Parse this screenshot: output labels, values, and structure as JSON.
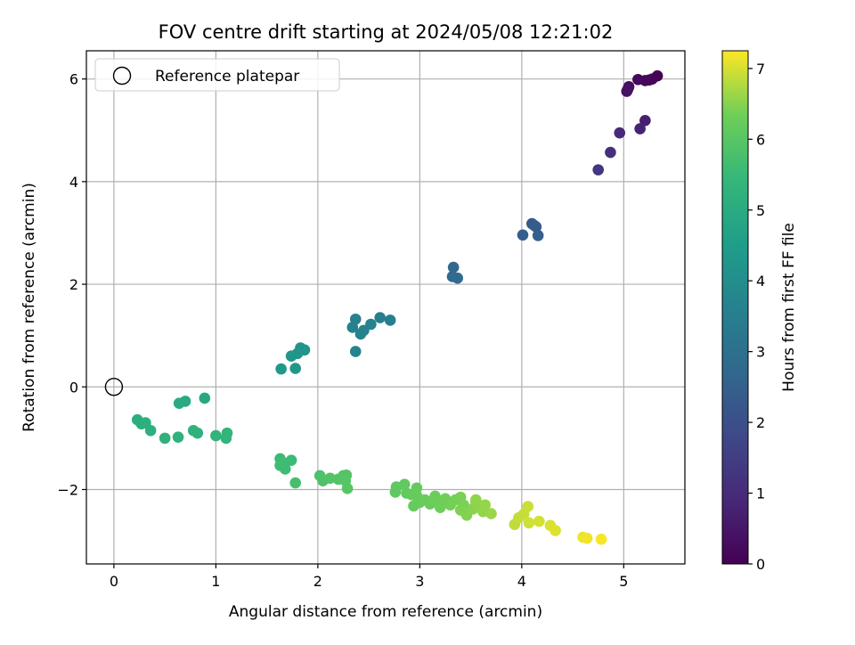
{
  "chart_data": {
    "type": "scatter",
    "title": "FOV centre drift starting at 2024/05/08 12:21:02",
    "xlabel": "Angular distance from reference (arcmin)",
    "ylabel": "Rotation from reference (arcmin)",
    "xlim": [
      -0.27,
      5.6
    ],
    "ylim": [
      -3.45,
      6.55
    ],
    "xticks": [
      0,
      1,
      2,
      3,
      4,
      5
    ],
    "yticks": [
      -2,
      0,
      2,
      4,
      6
    ],
    "xtick_labels": [
      "0",
      "1",
      "2",
      "3",
      "4",
      "5"
    ],
    "ytick_labels": [
      "−2",
      "0",
      "2",
      "4",
      "6"
    ],
    "grid": true,
    "legend": {
      "position": "top-left",
      "entries": [
        {
          "label": "Reference platepar",
          "marker": "open-circle"
        }
      ]
    },
    "reference_point": {
      "x": 0,
      "y": 0
    },
    "colorbar": {
      "label": "Hours from first FF file",
      "range": [
        0,
        7.25
      ],
      "ticks": [
        0,
        1,
        2,
        3,
        4,
        5,
        6,
        7
      ],
      "colormap": "viridis"
    },
    "series": [
      {
        "points": [
          {
            "x": 5.33,
            "y": 6.06,
            "c": 0.02
          },
          {
            "x": 5.28,
            "y": 6.0,
            "c": 0.08
          },
          {
            "x": 5.25,
            "y": 5.98,
            "c": 0.12
          },
          {
            "x": 5.21,
            "y": 5.97,
            "c": 0.16
          },
          {
            "x": 5.14,
            "y": 5.99,
            "c": 0.22
          },
          {
            "x": 5.05,
            "y": 5.85,
            "c": 0.3
          },
          {
            "x": 5.03,
            "y": 5.76,
            "c": 0.36
          },
          {
            "x": 5.04,
            "y": 5.8,
            "c": 0.4
          },
          {
            "x": 5.21,
            "y": 5.19,
            "c": 0.72
          },
          {
            "x": 5.16,
            "y": 5.03,
            "c": 0.78
          },
          {
            "x": 4.96,
            "y": 4.95,
            "c": 0.95
          },
          {
            "x": 4.87,
            "y": 4.57,
            "c": 1.12
          },
          {
            "x": 4.75,
            "y": 4.23,
            "c": 1.3
          },
          {
            "x": 4.1,
            "y": 3.18,
            "c": 2.3
          },
          {
            "x": 4.12,
            "y": 3.15,
            "c": 2.33
          },
          {
            "x": 4.14,
            "y": 3.12,
            "c": 2.36
          },
          {
            "x": 4.01,
            "y": 2.96,
            "c": 2.42
          },
          {
            "x": 4.16,
            "y": 2.95,
            "c": 2.45
          },
          {
            "x": 3.33,
            "y": 2.33,
            "c": 2.75
          },
          {
            "x": 3.32,
            "y": 2.15,
            "c": 2.8
          },
          {
            "x": 3.37,
            "y": 2.12,
            "c": 2.85
          },
          {
            "x": 2.61,
            "y": 1.35,
            "c": 3.5
          },
          {
            "x": 2.71,
            "y": 1.3,
            "c": 3.45
          },
          {
            "x": 2.37,
            "y": 1.32,
            "c": 3.55
          },
          {
            "x": 2.34,
            "y": 1.16,
            "c": 3.6
          },
          {
            "x": 2.52,
            "y": 1.22,
            "c": 3.62
          },
          {
            "x": 2.42,
            "y": 1.03,
            "c": 3.66
          },
          {
            "x": 2.45,
            "y": 1.1,
            "c": 3.64
          },
          {
            "x": 2.37,
            "y": 0.69,
            "c": 3.7
          },
          {
            "x": 1.83,
            "y": 0.76,
            "c": 4.2
          },
          {
            "x": 1.87,
            "y": 0.72,
            "c": 4.22
          },
          {
            "x": 1.8,
            "y": 0.65,
            "c": 4.25
          },
          {
            "x": 1.74,
            "y": 0.6,
            "c": 4.28
          },
          {
            "x": 1.64,
            "y": 0.35,
            "c": 4.35
          },
          {
            "x": 1.78,
            "y": 0.36,
            "c": 4.32
          },
          {
            "x": 0.89,
            "y": -0.22,
            "c": 4.9
          },
          {
            "x": 0.7,
            "y": -0.28,
            "c": 4.95
          },
          {
            "x": 0.64,
            "y": -0.32,
            "c": 4.98
          },
          {
            "x": 0.23,
            "y": -0.64,
            "c": 5.1
          },
          {
            "x": 0.27,
            "y": -0.72,
            "c": 5.12
          },
          {
            "x": 0.31,
            "y": -0.7,
            "c": 5.14
          },
          {
            "x": 0.36,
            "y": -0.85,
            "c": 5.16
          },
          {
            "x": 0.5,
            "y": -1.0,
            "c": 5.2
          },
          {
            "x": 0.63,
            "y": -0.98,
            "c": 5.22
          },
          {
            "x": 0.78,
            "y": -0.85,
            "c": 5.24
          },
          {
            "x": 0.82,
            "y": -0.9,
            "c": 5.26
          },
          {
            "x": 1.0,
            "y": -0.95,
            "c": 5.3
          },
          {
            "x": 1.11,
            "y": -0.9,
            "c": 5.32
          },
          {
            "x": 1.1,
            "y": -1.0,
            "c": 5.34
          },
          {
            "x": 1.63,
            "y": -1.4,
            "c": 5.55
          },
          {
            "x": 1.74,
            "y": -1.43,
            "c": 5.56
          },
          {
            "x": 1.63,
            "y": -1.53,
            "c": 5.58
          },
          {
            "x": 1.68,
            "y": -1.6,
            "c": 5.6
          },
          {
            "x": 1.66,
            "y": -1.48,
            "c": 5.59
          },
          {
            "x": 1.78,
            "y": -1.87,
            "c": 5.7
          },
          {
            "x": 2.02,
            "y": -1.73,
            "c": 5.85
          },
          {
            "x": 2.05,
            "y": -1.83,
            "c": 5.87
          },
          {
            "x": 2.12,
            "y": -1.78,
            "c": 5.9
          },
          {
            "x": 2.2,
            "y": -1.8,
            "c": 5.93
          },
          {
            "x": 2.25,
            "y": -1.73,
            "c": 5.95
          },
          {
            "x": 2.28,
            "y": -1.72,
            "c": 5.96
          },
          {
            "x": 2.27,
            "y": -1.83,
            "c": 5.97
          },
          {
            "x": 2.29,
            "y": -1.98,
            "c": 5.99
          },
          {
            "x": 2.77,
            "y": -1.95,
            "c": 6.1
          },
          {
            "x": 2.76,
            "y": -2.05,
            "c": 6.12
          },
          {
            "x": 2.85,
            "y": -1.9,
            "c": 6.14
          },
          {
            "x": 2.87,
            "y": -2.07,
            "c": 6.16
          },
          {
            "x": 2.92,
            "y": -2.1,
            "c": 6.18
          },
          {
            "x": 2.97,
            "y": -1.97,
            "c": 6.2
          },
          {
            "x": 2.97,
            "y": -2.12,
            "c": 6.21
          },
          {
            "x": 2.94,
            "y": -2.32,
            "c": 6.22
          },
          {
            "x": 3.0,
            "y": -2.25,
            "c": 6.24
          },
          {
            "x": 3.05,
            "y": -2.2,
            "c": 6.26
          },
          {
            "x": 3.1,
            "y": -2.28,
            "c": 6.28
          },
          {
            "x": 3.15,
            "y": -2.13,
            "c": 6.3
          },
          {
            "x": 3.17,
            "y": -2.22,
            "c": 6.31
          },
          {
            "x": 3.2,
            "y": -2.35,
            "c": 6.33
          },
          {
            "x": 3.25,
            "y": -2.18,
            "c": 6.35
          },
          {
            "x": 3.3,
            "y": -2.3,
            "c": 6.37
          },
          {
            "x": 3.35,
            "y": -2.2,
            "c": 6.39
          },
          {
            "x": 3.4,
            "y": -2.15,
            "c": 6.41
          },
          {
            "x": 3.43,
            "y": -2.3,
            "c": 6.43
          },
          {
            "x": 3.4,
            "y": -2.4,
            "c": 6.45
          },
          {
            "x": 3.46,
            "y": -2.5,
            "c": 6.47
          },
          {
            "x": 3.52,
            "y": -2.38,
            "c": 6.5
          },
          {
            "x": 3.55,
            "y": -2.25,
            "c": 6.52
          },
          {
            "x": 3.58,
            "y": -2.35,
            "c": 6.54
          },
          {
            "x": 3.62,
            "y": -2.43,
            "c": 6.57
          },
          {
            "x": 3.64,
            "y": -2.3,
            "c": 6.59
          },
          {
            "x": 3.7,
            "y": -2.47,
            "c": 6.62
          },
          {
            "x": 3.55,
            "y": -2.2,
            "c": 6.56
          },
          {
            "x": 3.93,
            "y": -2.68,
            "c": 6.85
          },
          {
            "x": 3.97,
            "y": -2.55,
            "c": 6.88
          },
          {
            "x": 4.02,
            "y": -2.48,
            "c": 6.9
          },
          {
            "x": 4.06,
            "y": -2.33,
            "c": 6.92
          },
          {
            "x": 4.07,
            "y": -2.65,
            "c": 6.95
          },
          {
            "x": 4.17,
            "y": -2.62,
            "c": 6.98
          },
          {
            "x": 4.28,
            "y": -2.7,
            "c": 7.02
          },
          {
            "x": 4.33,
            "y": -2.8,
            "c": 7.05
          },
          {
            "x": 4.6,
            "y": -2.93,
            "c": 7.15
          },
          {
            "x": 4.64,
            "y": -2.95,
            "c": 7.17
          },
          {
            "x": 4.78,
            "y": -2.97,
            "c": 7.2
          }
        ]
      }
    ]
  }
}
